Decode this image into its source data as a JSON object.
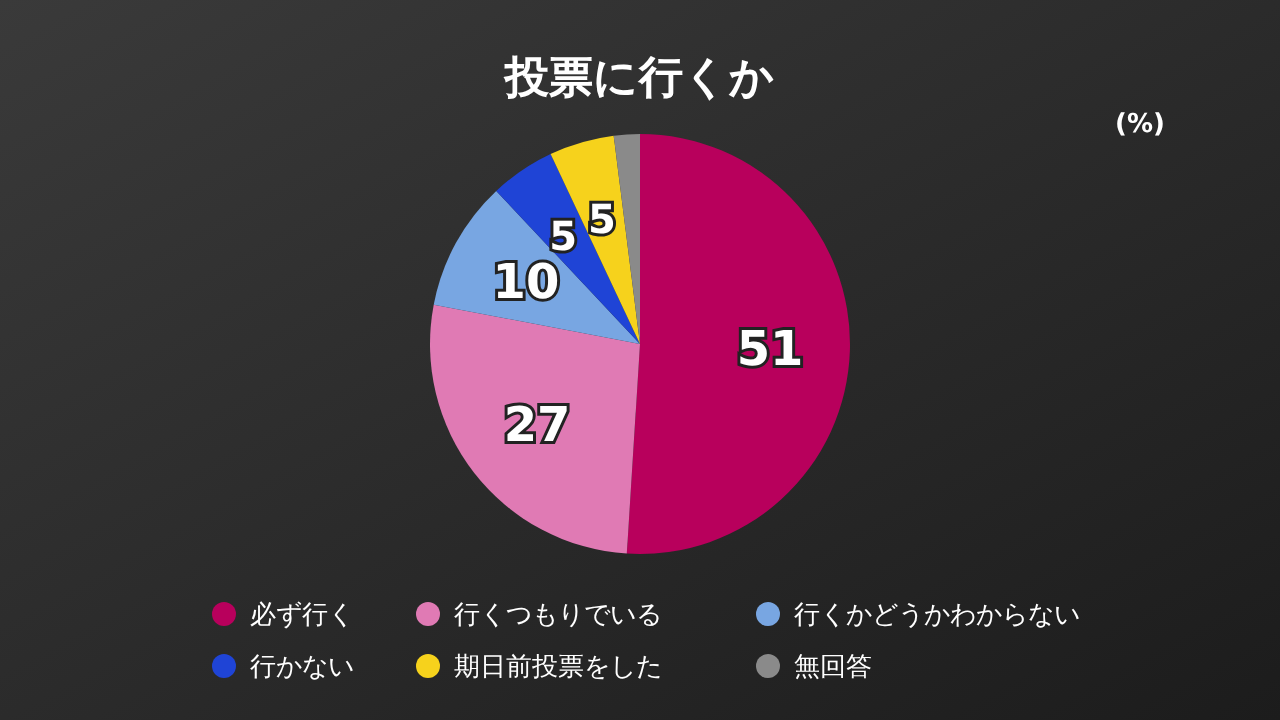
{
  "chart_data": {
    "type": "pie",
    "title": "投票に行くか",
    "annotations": [
      "(%)"
    ],
    "categories": [
      "必ず行く",
      "行くつもりでいる",
      "行くかどうかわからない",
      "行かない",
      "期日前投票をした",
      "無回答"
    ],
    "values": [
      51,
      27,
      10,
      5,
      5,
      2
    ],
    "value_labels": [
      "51",
      "27",
      "10",
      "5",
      "5",
      null
    ],
    "colors": [
      "#b8005c",
      "#e07ab4",
      "#78a6e2",
      "#1f44d6",
      "#f6d21c",
      "#8a8a8a"
    ],
    "legend": "bottom"
  }
}
